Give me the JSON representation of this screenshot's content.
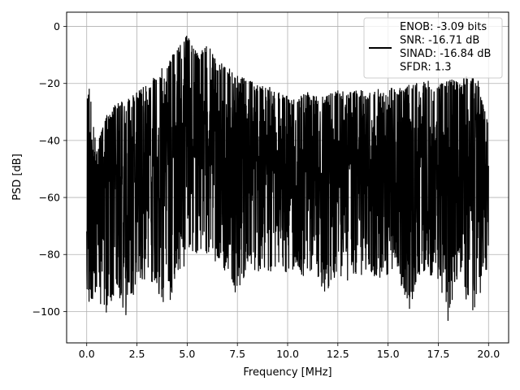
{
  "chart_data": {
    "type": "line",
    "title": "",
    "xlabel": "Frequency [MHz]",
    "ylabel": "PSD [dB]",
    "xlim": [
      -1,
      21
    ],
    "ylim": [
      -111,
      5
    ],
    "x_ticks": [
      0,
      2.5,
      5,
      7.5,
      10,
      12.5,
      15,
      17.5,
      20
    ],
    "x_tick_labels": [
      "0.0",
      "2.5",
      "5.0",
      "7.5",
      "10.0",
      "12.5",
      "15.0",
      "17.5",
      "20.0"
    ],
    "y_ticks": [
      0,
      -20,
      -40,
      -60,
      -80,
      -100
    ],
    "y_tick_labels": [
      "0",
      "−20",
      "−40",
      "−60",
      "−80",
      "−100"
    ],
    "grid": true,
    "legend_position": "top-right",
    "series": [
      {
        "name": "ENOB: -3.09 bits\nSNR: -16.71 dB\nSINAD: -16.84 dB\nSFDR: 1.3",
        "color": "#000000",
        "x": [
          0,
          0.5,
          1,
          1.5,
          2,
          2.5,
          3,
          3.5,
          4,
          4.5,
          5,
          5.5,
          6,
          6.5,
          7,
          7.5,
          8,
          8.5,
          9,
          9.5,
          10,
          10.5,
          11,
          11.5,
          12,
          12.5,
          13,
          13.5,
          14,
          14.5,
          15,
          15.5,
          16,
          16.5,
          17,
          17.5,
          18,
          18.5,
          19,
          19.5,
          20
        ],
        "y_upper": [
          -14,
          -42,
          -30,
          -27,
          -25,
          -23,
          -20,
          -17,
          -12,
          -8,
          -2,
          -9,
          -6,
          -12,
          -14,
          -17,
          -18,
          -20,
          -21,
          -22,
          -24,
          -25,
          -23,
          -24,
          -24,
          -22,
          -23,
          -22,
          -23,
          -22,
          -21,
          -21,
          -20,
          -20,
          -19,
          -20,
          -18,
          -19,
          -17,
          -19,
          -35
        ],
        "y_mean": [
          -60,
          -62,
          -60,
          -58,
          -56,
          -54,
          -52,
          -48,
          -44,
          -41,
          -38,
          -38,
          -40,
          -42,
          -44,
          -46,
          -47,
          -48,
          -49,
          -50,
          -51,
          -51,
          -51,
          -52,
          -52,
          -51,
          -51,
          -51,
          -50,
          -50,
          -50,
          -49,
          -49,
          -48,
          -48,
          -48,
          -47,
          -47,
          -47,
          -48,
          -60
        ],
        "y_lower": [
          -99,
          -95,
          -103,
          -92,
          -106,
          -90,
          -89,
          -93,
          -100,
          -88,
          -84,
          -80,
          -82,
          -85,
          -86,
          -96,
          -84,
          -86,
          -86,
          -87,
          -88,
          -86,
          -90,
          -88,
          -98,
          -87,
          -90,
          -88,
          -86,
          -90,
          -87,
          -86,
          -102,
          -87,
          -88,
          -89,
          -105,
          -87,
          -100,
          -104,
          -82
        ]
      }
    ]
  }
}
